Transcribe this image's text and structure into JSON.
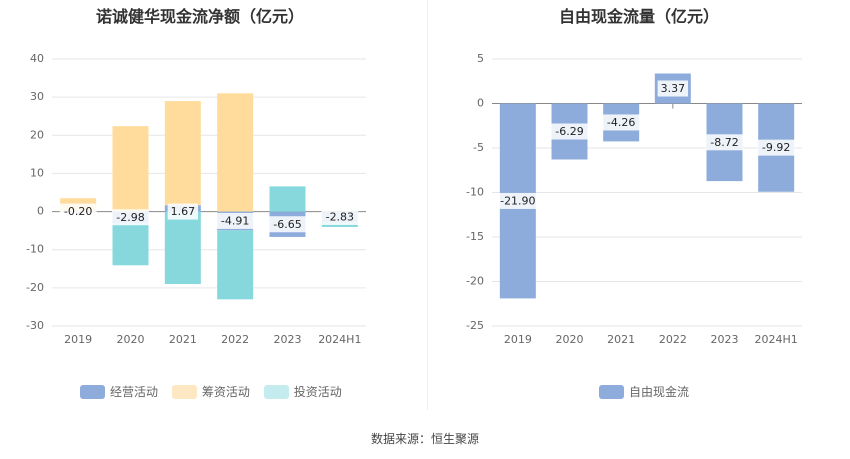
{
  "source_label": "数据来源：恒生聚源",
  "chart_data": [
    {
      "type": "bar",
      "stacked": true,
      "title": "诺诚健华现金流净额（亿元）",
      "categories": [
        "2019",
        "2020",
        "2021",
        "2022",
        "2023",
        "2024H1"
      ],
      "ylim": [
        -30,
        40
      ],
      "yticks": [
        40,
        30,
        20,
        10,
        0,
        -10,
        -20,
        -30
      ],
      "grid": true,
      "legend_position": "bottom",
      "series": [
        {
          "name": "经营活动",
          "color": "#8eacdb",
          "values": [
            -0.2,
            -2.98,
            1.67,
            -4.91,
            -6.65,
            -2.83
          ],
          "labels": [
            "-0.20",
            "-2.98",
            "1.67",
            "-4.91",
            "-6.65",
            "-2.83"
          ]
        },
        {
          "name": "筹资活动",
          "color": "#ffdb9c",
          "values": [
            3.5,
            22.4,
            27.3,
            31.0,
            0.0,
            0.0
          ]
        },
        {
          "name": "投资活动",
          "color": "#86d8dc",
          "values": [
            0.0,
            -11.1,
            -19.0,
            -18.1,
            6.6,
            -1.2
          ]
        }
      ]
    },
    {
      "type": "bar",
      "title": "自由现金流量（亿元）",
      "categories": [
        "2019",
        "2020",
        "2021",
        "2022",
        "2023",
        "2024H1"
      ],
      "ylim": [
        -25,
        5
      ],
      "yticks": [
        5,
        0,
        -5,
        -10,
        -15,
        -20,
        -25
      ],
      "grid": true,
      "legend_position": "bottom",
      "series": [
        {
          "name": "自由现金流",
          "color": "#8eacdb",
          "values": [
            -21.9,
            -6.29,
            -4.26,
            3.37,
            -8.72,
            -9.92
          ],
          "labels": [
            "-21.90",
            "-6.29",
            "-4.26",
            "3.37",
            "-8.72",
            "-9.92"
          ]
        }
      ]
    }
  ]
}
